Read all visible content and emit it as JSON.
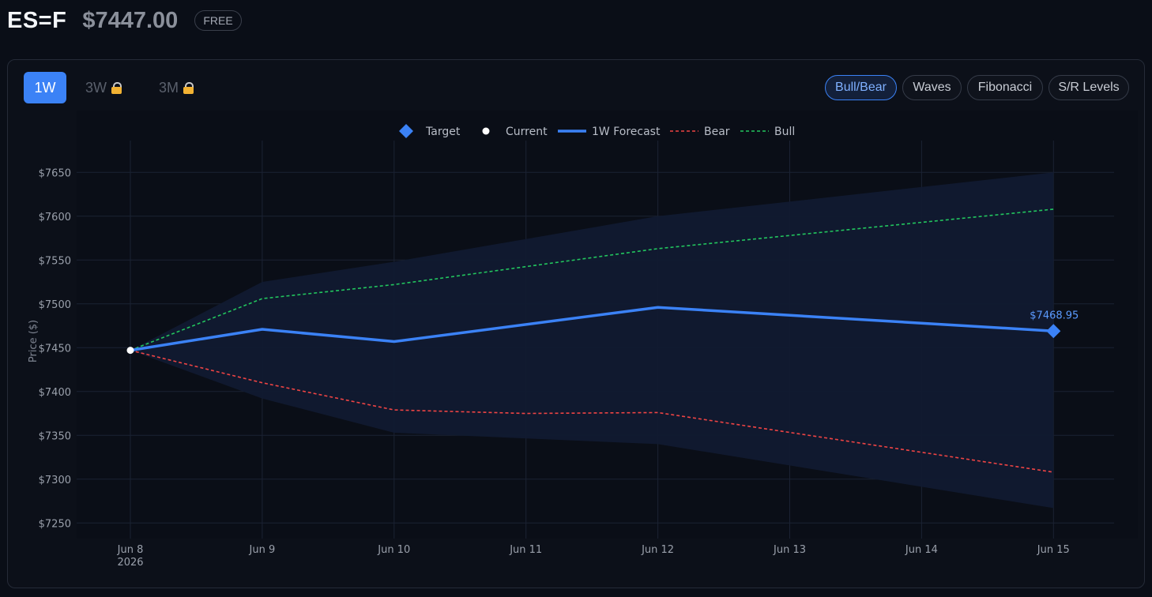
{
  "header": {
    "ticker": "ES=F",
    "price": "$7447.00",
    "badge": "FREE"
  },
  "timeframes": [
    {
      "label": "1W",
      "active": true,
      "locked": false
    },
    {
      "label": "3W",
      "active": false,
      "locked": true
    },
    {
      "label": "3M",
      "active": false,
      "locked": true
    }
  ],
  "overlays": [
    {
      "label": "Bull/Bear",
      "active": true
    },
    {
      "label": "Waves",
      "active": false
    },
    {
      "label": "Fibonacci",
      "active": false
    },
    {
      "label": "S/R Levels",
      "active": false
    }
  ],
  "colors": {
    "forecast": "#3b82f6",
    "bear": "#ef4444",
    "bull": "#22c55e",
    "band": "#111a30",
    "current": "#ffffff"
  },
  "chart_data": {
    "type": "line",
    "ylabel": "Price ($)",
    "ylim": [
      7230,
      7690
    ],
    "yticks": [
      7250,
      7300,
      7350,
      7400,
      7450,
      7500,
      7550,
      7600,
      7650
    ],
    "ytick_labels": [
      "$7250",
      "$7300",
      "$7350",
      "$7400",
      "$7450",
      "$7500",
      "$7550",
      "$7600",
      "$7650"
    ],
    "categories": [
      "Jun 8",
      "Jun 9",
      "Jun 10",
      "Jun 11",
      "Jun 12",
      "Jun 13",
      "Jun 14",
      "Jun 15"
    ],
    "x_sublabel": "2026",
    "grid": true,
    "legend": {
      "position": "top-center",
      "entries": [
        "Target",
        "Current",
        "1W Forecast",
        "Bear",
        "Bull"
      ]
    },
    "current": {
      "x": "Jun 8",
      "value": 7447
    },
    "target": {
      "x": "Jun 15",
      "value": 7468.95,
      "label": "$7468.95"
    },
    "series": [
      {
        "name": "1W Forecast",
        "x": [
          "Jun 8",
          "Jun 9",
          "Jun 10",
          "Jun 12",
          "Jun 15"
        ],
        "values": [
          7447,
          7471,
          7457,
          7496,
          7469
        ]
      },
      {
        "name": "Bear",
        "x": [
          "Jun 8",
          "Jun 9",
          "Jun 10",
          "Jun 11",
          "Jun 12",
          "Jun 15"
        ],
        "values": [
          7447,
          7410,
          7379,
          7375,
          7376,
          7308
        ]
      },
      {
        "name": "Bull",
        "x": [
          "Jun 8",
          "Jun 9",
          "Jun 10",
          "Jun 12",
          "Jun 15"
        ],
        "values": [
          7447,
          7506,
          7522,
          7563,
          7608
        ]
      }
    ],
    "band": {
      "x": [
        "Jun 8",
        "Jun 9",
        "Jun 10",
        "Jun 12",
        "Jun 15"
      ],
      "upper": [
        7447,
        7525,
        7548,
        7600,
        7650
      ],
      "lower": [
        7447,
        7392,
        7353,
        7340,
        7267
      ]
    }
  }
}
